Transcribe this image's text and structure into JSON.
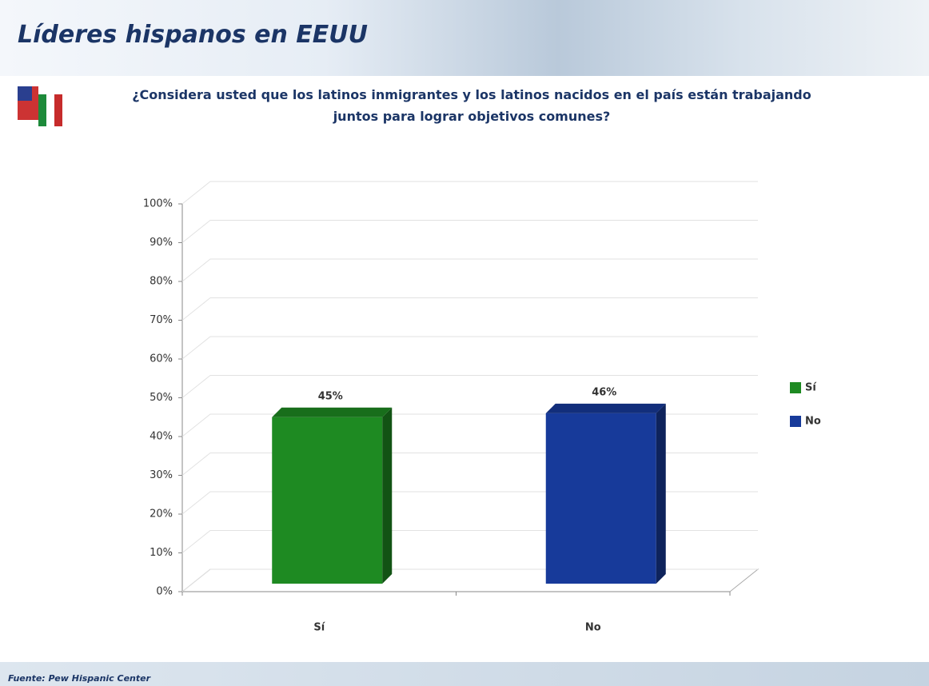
{
  "header": {
    "title": "Líderes hispanos en EEUU"
  },
  "question": "¿Considera usted que los latinos inmigrantes y los latinos nacidos en el país están trabajando juntos para lograr objetivos comunes?",
  "footer": "Fuente: Pew Hispanic Center",
  "chart_data": {
    "type": "bar",
    "categories": [
      "Sí",
      "No"
    ],
    "series": [
      {
        "name": "Sí",
        "color": "#1e8a22",
        "values": [
          45,
          null
        ],
        "value_labels": [
          "45%",
          null
        ]
      },
      {
        "name": "No",
        "color": "#173a9a",
        "values": [
          null,
          46
        ],
        "value_labels": [
          null,
          "46%"
        ]
      }
    ],
    "ylim": [
      0,
      100
    ],
    "yticks": [
      {
        "value": 0,
        "label": "0%"
      },
      {
        "value": 10,
        "label": "10%"
      },
      {
        "value": 20,
        "label": "20%"
      },
      {
        "value": 30,
        "label": "30%"
      },
      {
        "value": 40,
        "label": "40%"
      },
      {
        "value": 50,
        "label": "50%"
      },
      {
        "value": 60,
        "label": "60%"
      },
      {
        "value": 70,
        "label": "70%"
      },
      {
        "value": 80,
        "label": "80%"
      },
      {
        "value": 90,
        "label": "90%"
      },
      {
        "value": 100,
        "label": "100%"
      }
    ],
    "grid": true,
    "legend": "right"
  }
}
